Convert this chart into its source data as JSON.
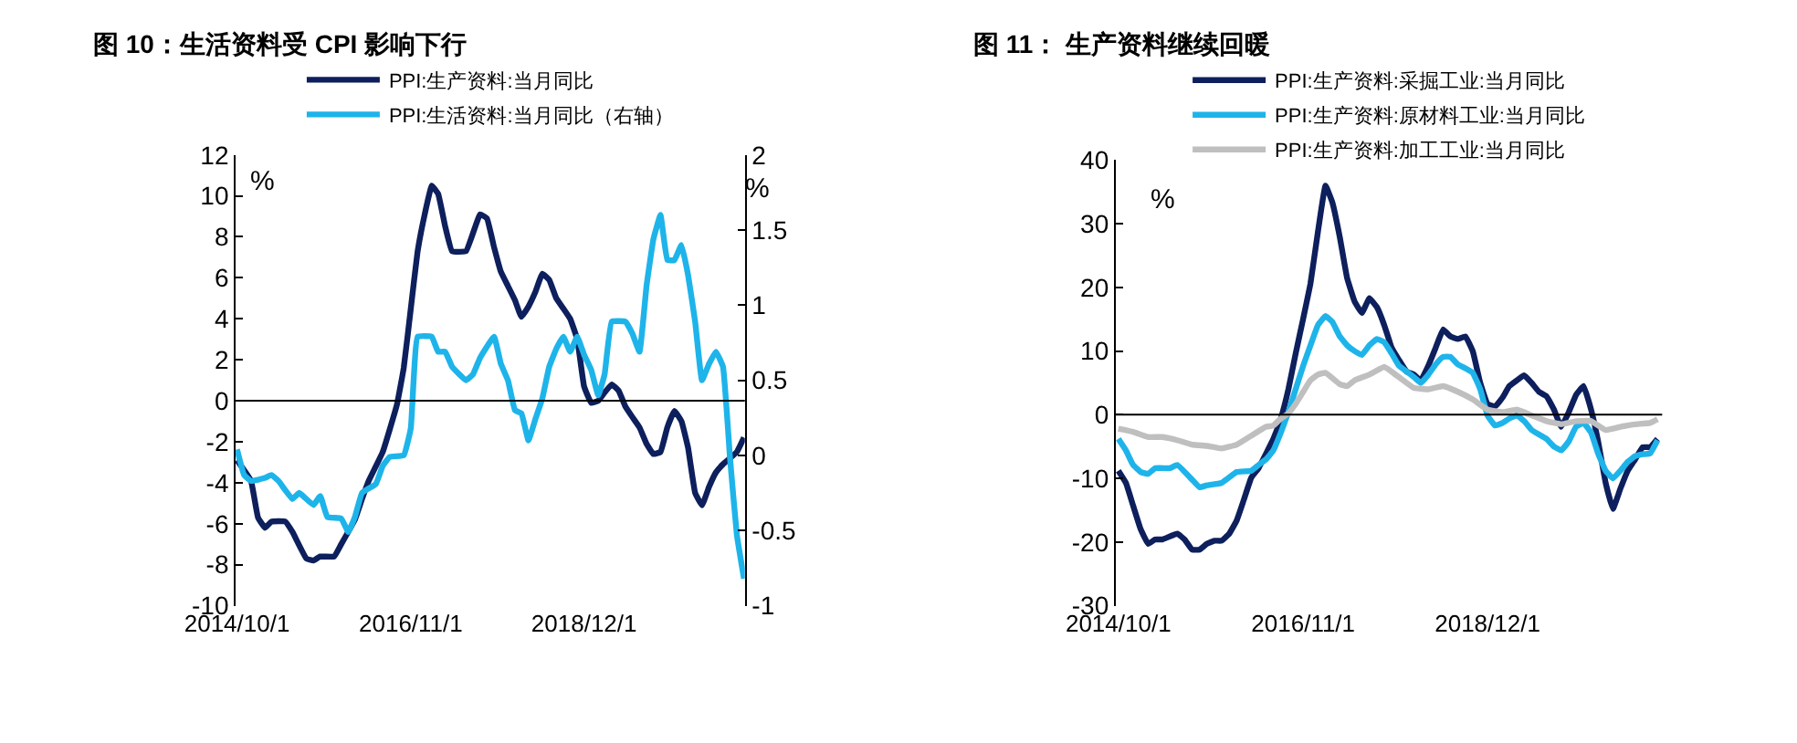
{
  "chart_data": [
    {
      "type": "line",
      "title": "图 10：生活资料受 CPI 影响下行",
      "ylabel": "%",
      "y2label": "%",
      "legend": "top",
      "xlim": [
        "2014-09-25",
        "2020-11-05"
      ],
      "xticks": [
        {
          "value": "2014-10-01",
          "label": "2014/10/1"
        },
        {
          "value": "2016-11-01",
          "label": "2016/11/1"
        },
        {
          "value": "2018-12-01",
          "label": "2018/12/1"
        }
      ],
      "ylim": [
        -10,
        12
      ],
      "yticks": [
        -10,
        -8,
        -6,
        -4,
        -2,
        0,
        2,
        4,
        6,
        8,
        10,
        12
      ],
      "y2lim": [
        -1,
        2
      ],
      "y2ticks": [
        -1,
        -0.5,
        0,
        0.5,
        1,
        1.5,
        2
      ],
      "ref_lines": [
        {
          "axis": "y",
          "value": 0,
          "color": "#000000"
        }
      ],
      "series": [
        {
          "name": "PPI:生产资料:当月同比",
          "color": "#0d1f5c",
          "x": [
            "2014-10",
            "2014-12",
            "2015-01",
            "2015-02",
            "2015-03",
            "2015-05",
            "2015-06",
            "2015-08",
            "2015-09",
            "2015-10",
            "2015-12",
            "2016-01",
            "2016-03",
            "2016-04",
            "2016-05",
            "2016-07",
            "2016-09",
            "2016-10",
            "2016-11",
            "2016-12",
            "2017-01",
            "2017-02",
            "2017-03",
            "2017-04",
            "2017-05",
            "2017-07",
            "2017-09",
            "2017-10",
            "2017-11",
            "2017-12",
            "2018-01",
            "2018-02",
            "2018-03",
            "2018-04",
            "2018-05",
            "2018-06",
            "2018-07",
            "2018-08",
            "2018-09",
            "2018-10",
            "2018-11",
            "2018-12",
            "2019-01",
            "2019-02",
            "2019-03",
            "2019-04",
            "2019-05",
            "2019-06",
            "2019-07",
            "2019-08",
            "2019-09",
            "2019-10",
            "2019-11",
            "2019-12",
            "2020-01",
            "2020-02",
            "2020-03",
            "2020-04",
            "2020-05",
            "2020-06",
            "2020-07",
            "2020-08",
            "2020-09",
            "2020-10",
            "2020-11"
          ],
          "values": [
            -2.9,
            -3.9,
            -5.7,
            -6.2,
            -5.9,
            -5.9,
            -6.4,
            -7.7,
            -7.8,
            -7.6,
            -7.6,
            -7.0,
            -5.8,
            -4.8,
            -3.9,
            -2.5,
            -0.2,
            1.6,
            4.5,
            7.3,
            9.1,
            10.5,
            10.1,
            8.5,
            7.3,
            7.3,
            9.1,
            8.9,
            7.5,
            6.3,
            5.6,
            4.9,
            4.1,
            4.6,
            5.3,
            6.2,
            5.9,
            5.0,
            4.5,
            4.0,
            3.0,
            0.7,
            -0.1,
            0,
            0.4,
            0.8,
            0.5,
            -0.3,
            -0.8,
            -1.3,
            -2.1,
            -2.6,
            -2.5,
            -1.3,
            -0.5,
            -1.0,
            -2.3,
            -4.5,
            -5.1,
            -4.2,
            -3.5,
            -3.1,
            -2.8,
            -2.5,
            -1.8
          ]
        },
        {
          "name": "PPI:生活资料:当月同比（右轴）",
          "color": "#1eb4ea",
          "axis": "y2",
          "x": [
            "2014-10",
            "2014-11",
            "2014-12",
            "2015-02",
            "2015-03",
            "2015-04",
            "2015-06",
            "2015-07",
            "2015-09",
            "2015-10",
            "2015-11",
            "2016-01",
            "2016-02",
            "2016-03",
            "2016-04",
            "2016-06",
            "2016-07",
            "2016-08",
            "2016-10",
            "2016-11",
            "2016-12",
            "2017-02",
            "2017-03",
            "2017-04",
            "2017-05",
            "2017-07",
            "2017-08",
            "2017-09",
            "2017-11",
            "2017-12",
            "2018-01",
            "2018-02",
            "2018-03",
            "2018-04",
            "2018-05",
            "2018-06",
            "2018-07",
            "2018-08",
            "2018-09",
            "2018-10",
            "2018-11",
            "2018-12",
            "2019-01",
            "2019-02",
            "2019-03",
            "2019-04",
            "2019-06",
            "2019-07",
            "2019-08",
            "2019-09",
            "2019-10",
            "2019-11",
            "2019-12",
            "2020-01",
            "2020-02",
            "2020-03",
            "2020-04",
            "2020-05",
            "2020-06",
            "2020-07",
            "2020-08",
            "2020-09",
            "2020-10",
            "2020-11"
          ],
          "values": [
            0.04,
            -0.13,
            -0.17,
            -0.15,
            -0.13,
            -0.17,
            -0.29,
            -0.25,
            -0.33,
            -0.27,
            -0.41,
            -0.42,
            -0.51,
            -0.41,
            -0.25,
            -0.19,
            -0.07,
            -0.01,
            0.0,
            0.18,
            0.79,
            0.79,
            0.69,
            0.69,
            0.59,
            0.5,
            0.54,
            0.65,
            0.79,
            0.61,
            0.5,
            0.3,
            0.28,
            0.1,
            0.24,
            0.38,
            0.59,
            0.71,
            0.79,
            0.69,
            0.79,
            0.67,
            0.57,
            0.4,
            0.54,
            0.89,
            0.89,
            0.81,
            0.69,
            1.13,
            1.44,
            1.6,
            1.3,
            1.3,
            1.4,
            1.2,
            0.89,
            0.5,
            0.61,
            0.69,
            0.59,
            -0.02,
            -0.53,
            -0.82
          ]
        }
      ]
    },
    {
      "type": "line",
      "title": "图 11： 生产资料继续回暖",
      "ylabel": "%",
      "legend": "top",
      "xlim": [
        "2014-09-20",
        "2020-11-20"
      ],
      "xticks": [
        {
          "value": "2014-10-01",
          "label": "2014/10/1"
        },
        {
          "value": "2016-11-01",
          "label": "2016/11/1"
        },
        {
          "value": "2018-12-01",
          "label": "2018/12/1"
        }
      ],
      "ylim": [
        -30,
        40
      ],
      "yticks": [
        -30,
        -20,
        -10,
        0,
        10,
        20,
        30,
        40
      ],
      "ref_lines": [
        {
          "axis": "y",
          "value": 0,
          "color": "#000000"
        }
      ],
      "series": [
        {
          "name": "PPI:生产资料:采掘工业:当月同比",
          "color": "#0d1f5c",
          "x": [
            "2014-10",
            "2014-11",
            "2014-12",
            "2015-01",
            "2015-02",
            "2015-03",
            "2015-04",
            "2015-06",
            "2015-07",
            "2015-08",
            "2015-09",
            "2015-10",
            "2015-11",
            "2015-12",
            "2016-01",
            "2016-02",
            "2016-03",
            "2016-04",
            "2016-05",
            "2016-06",
            "2016-07",
            "2016-08",
            "2016-09",
            "2016-10",
            "2016-11",
            "2016-12",
            "2017-01",
            "2017-02",
            "2017-03",
            "2017-04",
            "2017-05",
            "2017-06",
            "2017-07",
            "2017-08",
            "2017-09",
            "2017-10",
            "2017-11",
            "2017-12",
            "2018-01",
            "2018-02",
            "2018-03",
            "2018-04",
            "2018-05",
            "2018-06",
            "2018-07",
            "2018-08",
            "2018-09",
            "2018-10",
            "2018-11",
            "2018-12",
            "2019-01",
            "2019-02",
            "2019-03",
            "2019-04",
            "2019-05",
            "2019-06",
            "2019-07",
            "2019-08",
            "2019-09",
            "2019-10",
            "2019-11",
            "2019-12",
            "2020-01",
            "2020-02",
            "2020-03",
            "2020-04",
            "2020-05",
            "2020-06",
            "2020-07",
            "2020-08",
            "2020-09",
            "2020-10",
            "2020-11"
          ],
          "values": [
            -8.8,
            -10.7,
            -14.3,
            -18,
            -20.3,
            -19.6,
            -19.6,
            -18.7,
            -19.6,
            -21.2,
            -21.2,
            -20.3,
            -19.8,
            -19.8,
            -18.7,
            -16.6,
            -13.4,
            -9.9,
            -8.4,
            -6.1,
            -3.8,
            -0.6,
            4.0,
            9.6,
            15.1,
            20.6,
            28.8,
            36.0,
            33.4,
            27.9,
            21.5,
            17.8,
            16.0,
            18.3,
            16.9,
            14.1,
            10.5,
            8.6,
            6.8,
            6.3,
            5.4,
            7.7,
            10.5,
            13.4,
            12.3,
            11.9,
            12.3,
            10.0,
            5.0,
            1.7,
            1.3,
            2.7,
            4.5,
            5.4,
            6.2,
            5.0,
            3.6,
            2.9,
            0.8,
            -1.9,
            0.4,
            3.1,
            4.5,
            0.8,
            -4.2,
            -10.7,
            -14.8,
            -11.6,
            -8.8,
            -7.0,
            -5.1,
            -5.1,
            -3.8
          ]
        },
        {
          "name": "PPI:生产资料:原材料工业:当月同比",
          "color": "#1eb4ea",
          "x": [
            "2014-10",
            "2014-11",
            "2014-12",
            "2015-01",
            "2015-02",
            "2015-03",
            "2015-05",
            "2015-06",
            "2015-08",
            "2015-09",
            "2015-10",
            "2015-12",
            "2016-02",
            "2016-04",
            "2016-05",
            "2016-06",
            "2016-07",
            "2016-08",
            "2016-09",
            "2016-10",
            "2016-11",
            "2016-12",
            "2017-01",
            "2017-02",
            "2017-03",
            "2017-04",
            "2017-05",
            "2017-06",
            "2017-07",
            "2017-08",
            "2017-09",
            "2017-10",
            "2017-11",
            "2017-12",
            "2018-01",
            "2018-02",
            "2018-03",
            "2018-04",
            "2018-05",
            "2018-06",
            "2018-07",
            "2018-08",
            "2018-09",
            "2018-10",
            "2018-11",
            "2018-12",
            "2019-01",
            "2019-02",
            "2019-03",
            "2019-04",
            "2019-05",
            "2019-06",
            "2019-07",
            "2019-08",
            "2019-09",
            "2019-10",
            "2019-11",
            "2019-12",
            "2020-01",
            "2020-02",
            "2020-03",
            "2020-04",
            "2020-05",
            "2020-06",
            "2020-07",
            "2020-08",
            "2020-09",
            "2020-10",
            "2020-11"
          ],
          "values": [
            -3.8,
            -5.6,
            -7.9,
            -9.0,
            -9.3,
            -8.4,
            -8.4,
            -7.9,
            -10.2,
            -11.4,
            -11.1,
            -10.7,
            -9.0,
            -8.8,
            -7.9,
            -7.0,
            -5.6,
            -2.8,
            0.4,
            4.0,
            7.7,
            10.9,
            14.1,
            15.5,
            14.6,
            12.3,
            10.9,
            10.0,
            9.4,
            10.9,
            11.9,
            11.4,
            9.6,
            7.7,
            6.8,
            5.9,
            5.0,
            6.3,
            7.9,
            9.1,
            9.1,
            7.9,
            7.3,
            6.6,
            4.0,
            -0.1,
            -1.7,
            -1.3,
            -0.6,
            -0.1,
            -1.0,
            -2.4,
            -3.1,
            -3.8,
            -5.0,
            -5.6,
            -4.2,
            -1.9,
            -1.3,
            -2.8,
            -6.1,
            -8.8,
            -10.0,
            -8.8,
            -7.4,
            -6.5,
            -6.2,
            -6.1,
            -4.0
          ]
        },
        {
          "name": "PPI:生产资料:加工工业:当月同比",
          "color": "#bfbfbf",
          "x": [
            "2014-10",
            "2014-12",
            "2015-02",
            "2015-04",
            "2015-06",
            "2015-08",
            "2015-10",
            "2015-12",
            "2016-02",
            "2016-04",
            "2016-06",
            "2016-07",
            "2016-08",
            "2016-09",
            "2016-10",
            "2016-11",
            "2016-12",
            "2017-01",
            "2017-02",
            "2017-04",
            "2017-05",
            "2017-06",
            "2017-08",
            "2017-10",
            "2017-12",
            "2018-02",
            "2018-04",
            "2018-06",
            "2018-08",
            "2018-10",
            "2018-12",
            "2019-02",
            "2019-04",
            "2019-06",
            "2019-08",
            "2019-10",
            "2019-12",
            "2020-02",
            "2020-04",
            "2020-06",
            "2020-08",
            "2020-10",
            "2020-11"
          ],
          "values": [
            -2.2,
            -2.7,
            -3.5,
            -3.5,
            -4.0,
            -4.7,
            -4.9,
            -5.3,
            -4.7,
            -3.3,
            -1.9,
            -1.7,
            -0.6,
            0.2,
            1.7,
            3.6,
            5.4,
            6.3,
            6.6,
            4.8,
            4.5,
            5.4,
            6.3,
            7.5,
            5.9,
            4.2,
            4.0,
            4.5,
            3.6,
            2.4,
            0.8,
            0.4,
            0.8,
            -0.1,
            -1.0,
            -1.5,
            -1.0,
            -1.0,
            -2.4,
            -1.9,
            -1.5,
            -1.3,
            -0.7
          ]
        }
      ]
    }
  ]
}
